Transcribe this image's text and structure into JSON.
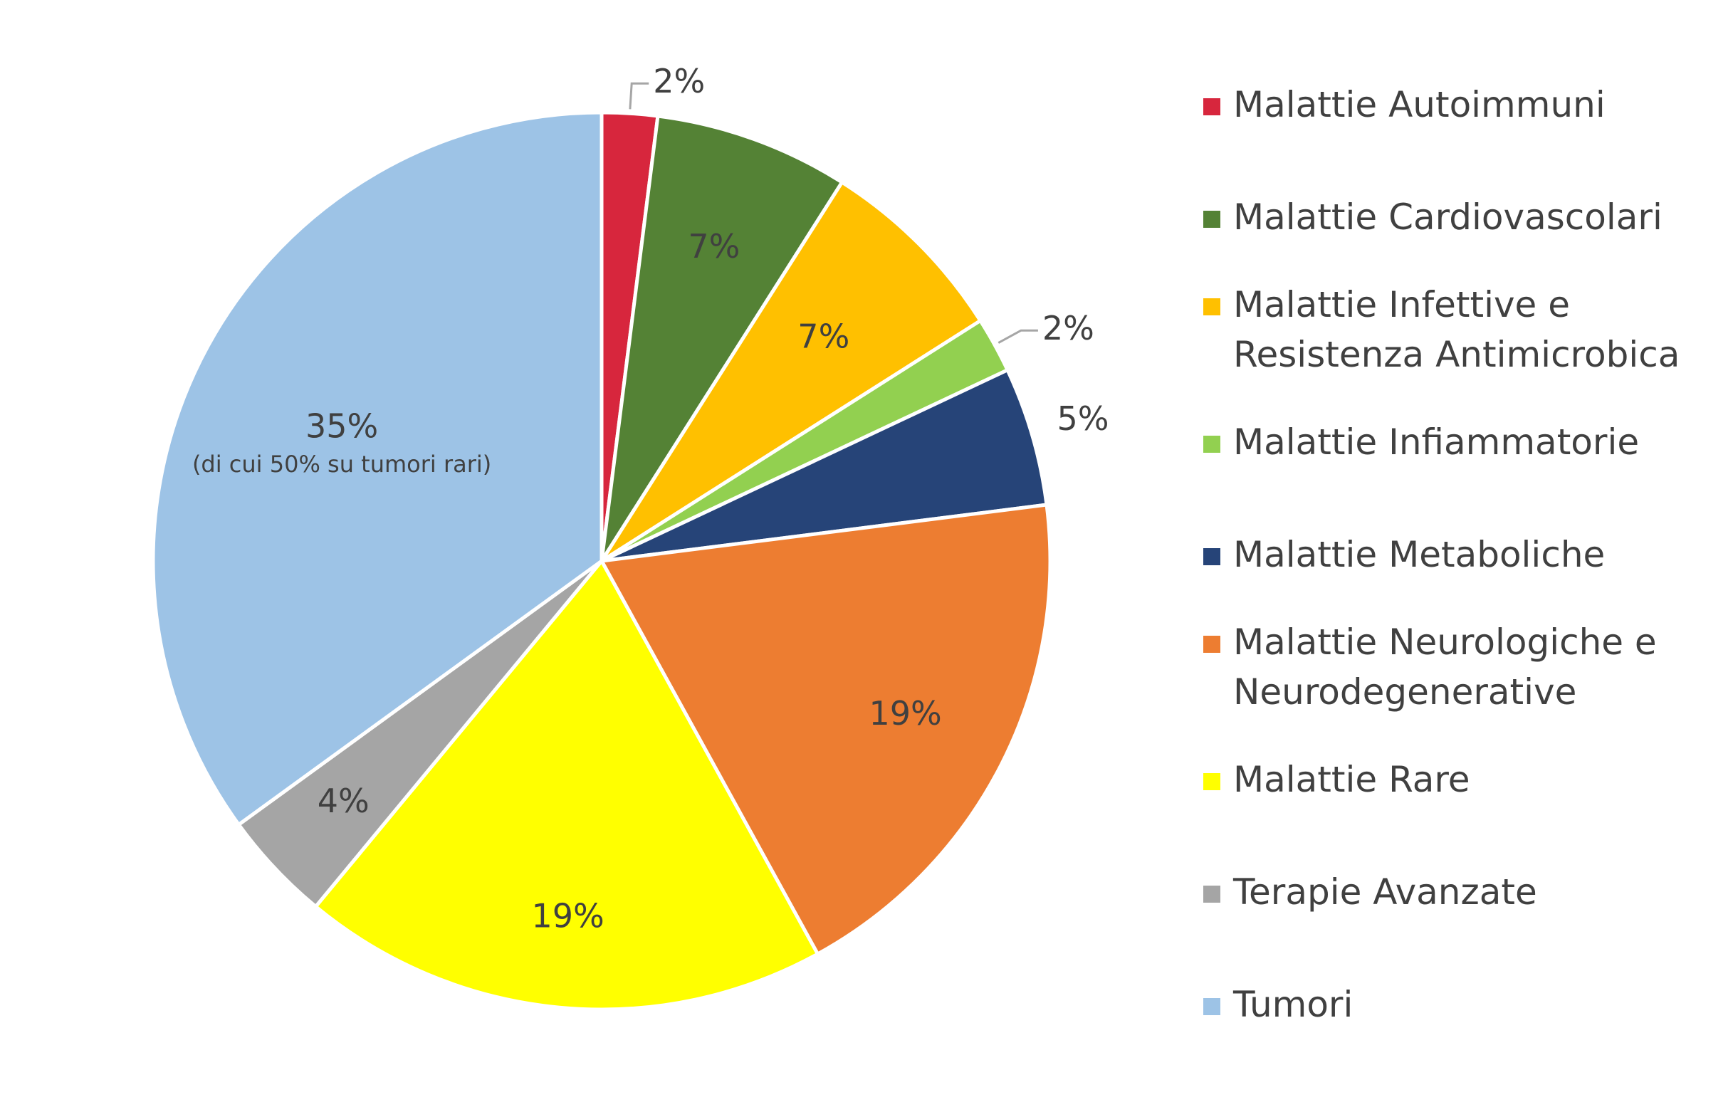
{
  "chart_data": {
    "type": "pie",
    "title": "",
    "start_angle_deg": 0,
    "direction": "clockwise",
    "legend_position": "right",
    "slices": [
      {
        "name": "Malattie Autoimmuni",
        "value": 2,
        "label": "2%",
        "color": "#D7263D",
        "label_style": "outside-leader"
      },
      {
        "name": "Malattie Cardiovascolari",
        "value": 7,
        "label": "7%",
        "color": "#548235",
        "label_style": "inside"
      },
      {
        "name": "Malattie Infettive e Resistenza Antimicrobica",
        "value": 7,
        "label": "7%",
        "color": "#FFC000",
        "label_style": "inside"
      },
      {
        "name": "Malattie Infiammatorie",
        "value": 2,
        "label": "2%",
        "color": "#92D050",
        "label_style": "outside-leader"
      },
      {
        "name": "Malattie Metaboliche",
        "value": 5,
        "label": "5%",
        "color": "#264478",
        "label_style": "outside"
      },
      {
        "name": "Malattie Neurologiche e Neurodegenerative",
        "value": 19,
        "label": "19%",
        "color": "#ED7D31",
        "label_style": "inside"
      },
      {
        "name": "Malattie Rare",
        "value": 19,
        "label": "19%",
        "color": "#FFFF00",
        "label_style": "inside"
      },
      {
        "name": "Terapie Avanzate",
        "value": 4,
        "label": "4%",
        "color": "#A5A5A5",
        "label_style": "inside"
      },
      {
        "name": "Tumori",
        "value": 35,
        "label": "35%",
        "note": "(di cui 50% su tumori rari)",
        "color": "#9DC3E6",
        "label_style": "inside"
      }
    ]
  },
  "legend": {
    "items": [
      {
        "lines": [
          "Malattie Autoimmuni"
        ],
        "color": "#D7263D"
      },
      {
        "lines": [
          "Malattie Cardiovascolari"
        ],
        "color": "#548235"
      },
      {
        "lines": [
          "Malattie Infettive e",
          "Resistenza Antimicrobica"
        ],
        "color": "#FFC000"
      },
      {
        "lines": [
          "Malattie Infiammatorie"
        ],
        "color": "#92D050"
      },
      {
        "lines": [
          "Malattie Metaboliche"
        ],
        "color": "#264478"
      },
      {
        "lines": [
          "Malattie Neurologiche e",
          "Neurodegenerative"
        ],
        "color": "#ED7D31"
      },
      {
        "lines": [
          "Malattie Rare"
        ],
        "color": "#FFFF00"
      },
      {
        "lines": [
          "Terapie Avanzate"
        ],
        "color": "#A5A5A5"
      },
      {
        "lines": [
          "Tumori"
        ],
        "color": "#9DC3E6"
      }
    ]
  }
}
